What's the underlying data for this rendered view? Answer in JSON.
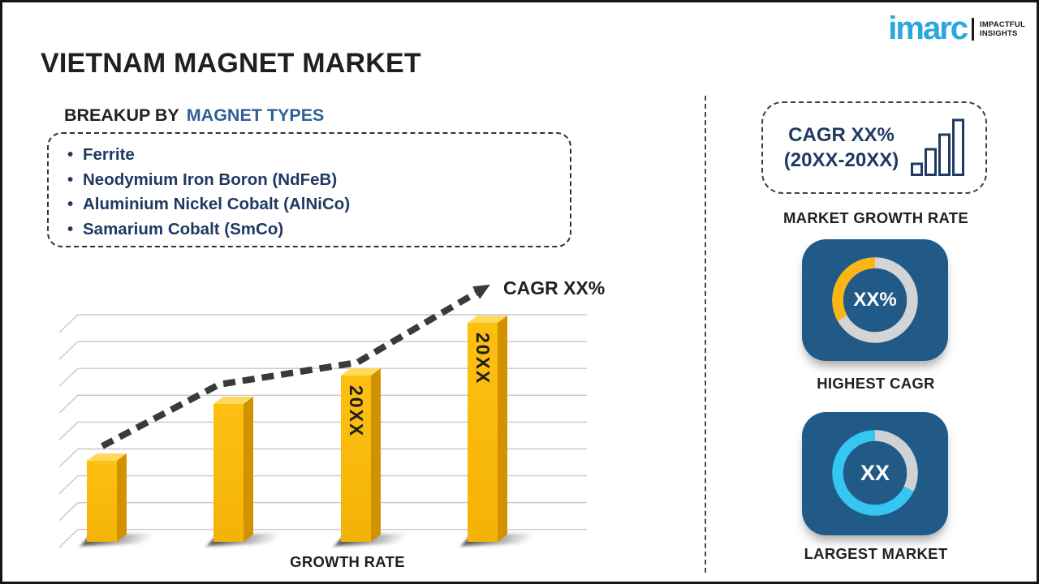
{
  "brand": {
    "logo_text": "imarc",
    "tagline_line1": "IMPACTFUL",
    "tagline_line2": "INSIGHTS"
  },
  "header": {
    "title": "VIETNAM MAGNET MARKET"
  },
  "breakup": {
    "label_prefix": "BREAKUP BY",
    "label_highlight": "MAGNET TYPES",
    "bullet": "•",
    "items": [
      "Ferrite",
      "Neodymium Iron Boron (NdFeB)",
      "Aluminium Nickel Cobalt (AlNiCo)",
      "Samarium Cobalt (SmCo)"
    ]
  },
  "chart_data": {
    "type": "bar",
    "categories": [
      "",
      "",
      "20XX",
      "20XX"
    ],
    "values": [
      100,
      170,
      205,
      270
    ],
    "values_note": "relative bar heights (no numeric axis shown in figure)",
    "xlabel": "GROWTH RATE",
    "annotation": "CAGR XX%",
    "grid": true,
    "trend_arrow": true,
    "bar_color": "#fdc011",
    "bar_color_bottom": "#f3b306",
    "bar_side_color": "#d29200",
    "bar_top_color": "#ffd95e"
  },
  "right_panel": {
    "cagr_card": {
      "line1": "CAGR XX%",
      "line2": "(20XX-20XX)"
    },
    "market_growth_label": "MARKET GROWTH RATE",
    "highest_cagr": {
      "value": "XX%",
      "label": "HIGHEST CAGR",
      "donut": {
        "segment_pct": 33,
        "segment_color": "#fcb614",
        "track_color": "#d3d4d6"
      }
    },
    "largest_market": {
      "value": "XX",
      "label": "LARGEST MARKET",
      "donut": {
        "segment_pct": 32,
        "segment_color": "#cfd1d3",
        "track_color": "#35c7f2"
      }
    }
  },
  "colors": {
    "accent_navy": "#1e3a63",
    "subtitle_blue": "#2d6096",
    "tile_blue": "#215a86",
    "text_dark": "#231f20",
    "logo_cyan": "#29a8e0"
  }
}
